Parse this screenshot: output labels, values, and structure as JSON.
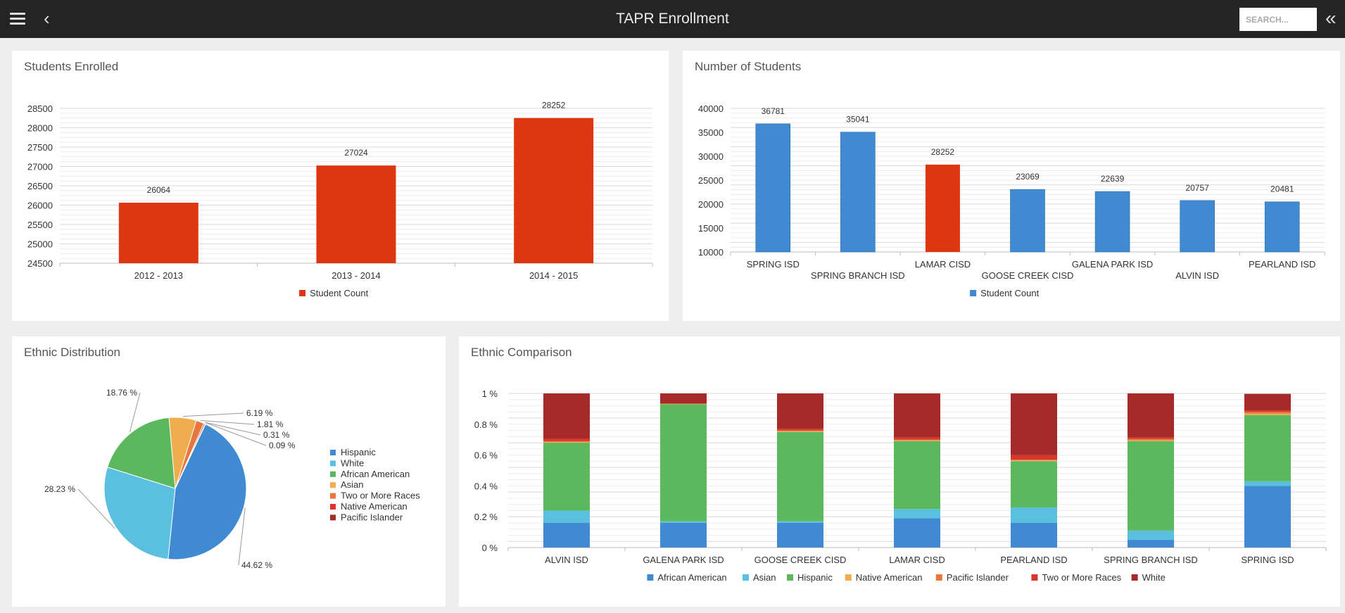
{
  "header": {
    "title": "TAPR Enrollment",
    "menu_icon": "hamburger-menu-icon",
    "back_icon": "chevron-left-icon",
    "search_placeholder": "SEARCH...",
    "collapse_icon": "double-chevron-left-icon"
  },
  "panels": {
    "students_enrolled": {
      "title": "Students Enrolled",
      "chart_data": {
        "type": "bar",
        "categories": [
          "2012 - 2013",
          "2013 - 2014",
          "2014 - 2015"
        ],
        "series": [
          {
            "name": "Student Count",
            "values": [
              26064,
              27024,
              28252
            ],
            "color": "#dd3712"
          }
        ],
        "ylim": [
          24500,
          28500
        ],
        "yticks": [
          24500,
          25000,
          25500,
          26000,
          26500,
          27000,
          27500,
          28000,
          28500
        ],
        "data_labels": true,
        "grid": true,
        "legend": "bottom-center"
      }
    },
    "number_of_students": {
      "title": "Number of Students",
      "chart_data": {
        "type": "bar",
        "categories": [
          "SPRING ISD",
          "SPRING BRANCH ISD",
          "LAMAR CISD",
          "GOOSE CREEK CISD",
          "GALENA PARK ISD",
          "ALVIN ISD",
          "PEARLAND ISD"
        ],
        "series": [
          {
            "name": "Student Count",
            "values": [
              36781,
              35041,
              28252,
              23069,
              22639,
              20757,
              20481
            ],
            "color": "#3f8ad1"
          }
        ],
        "highlight": {
          "category": "LAMAR CISD",
          "color": "#dd3712"
        },
        "ylim": [
          10000,
          40000
        ],
        "yticks": [
          10000,
          15000,
          20000,
          25000,
          30000,
          35000,
          40000
        ],
        "data_labels": true,
        "grid": true,
        "legend": "bottom-center"
      }
    },
    "ethnic_distribution": {
      "title": "Ethnic Distribution",
      "chart_data": {
        "type": "pie",
        "slices": [
          {
            "name": "Hispanic",
            "value": 44.62,
            "label": "44.62 %",
            "color": "#3f8ad1"
          },
          {
            "name": "White",
            "value": 28.23,
            "label": "28.23 %",
            "color": "#5bbfe0"
          },
          {
            "name": "African American",
            "value": 18.76,
            "label": "18.76 %",
            "color": "#5cb85c"
          },
          {
            "name": "Asian",
            "value": 6.19,
            "label": "6.19 %",
            "color": "#f0ad4e"
          },
          {
            "name": "Two or More Races",
            "value": 1.81,
            "label": "1.81 %",
            "color": "#e8773e"
          },
          {
            "name": "Native American",
            "value": 0.31,
            "label": "0.31 %",
            "color": "#d9372c"
          },
          {
            "name": "Pacific Islander",
            "value": 0.09,
            "label": "0.09 %",
            "color": "#a52a2a"
          }
        ],
        "legend": "right"
      }
    },
    "ethnic_comparison": {
      "title": "Ethnic Comparison",
      "chart_data": {
        "type": "bar",
        "stacked": true,
        "categories": [
          "ALVIN ISD",
          "GALENA PARK ISD",
          "GOOSE CREEK CISD",
          "LAMAR CISD",
          "PEARLAND ISD",
          "SPRING BRANCH ISD",
          "SPRING ISD"
        ],
        "series": [
          {
            "name": "African American",
            "color": "#3f8ad1",
            "values": [
              0.16,
              0.16,
              0.16,
              0.19,
              0.16,
              0.05,
              0.4
            ]
          },
          {
            "name": "Asian",
            "color": "#5bbfe0",
            "values": [
              0.08,
              0.01,
              0.01,
              0.06,
              0.1,
              0.06,
              0.03
            ]
          },
          {
            "name": "Hispanic",
            "color": "#5cb85c",
            "values": [
              0.44,
              0.76,
              0.58,
              0.44,
              0.3,
              0.58,
              0.43
            ]
          },
          {
            "name": "Native American",
            "color": "#f0ad4e",
            "values": [
              0.005,
              0.002,
              0.005,
              0.005,
              0.005,
              0.005,
              0.01
            ]
          },
          {
            "name": "Pacific Islander",
            "color": "#e8773e",
            "values": [
              0.005,
              0.002,
              0.005,
              0.005,
              0.005,
              0.01,
              0.01
            ]
          },
          {
            "name": "Two or More Races",
            "color": "#d9372c",
            "values": [
              0.015,
              0.002,
              0.01,
              0.015,
              0.03,
              0.01,
              0.01
            ]
          },
          {
            "name": "White",
            "color": "#a52a2a",
            "values": [
              0.295,
              0.066,
              0.23,
              0.285,
              0.4,
              0.285,
              0.107
            ]
          }
        ],
        "ylim": [
          0,
          1
        ],
        "yticks": [
          "0 %",
          "0.2 %",
          "0.4 %",
          "0.6 %",
          "0.8 %",
          "1 %"
        ],
        "grid": true,
        "legend": "bottom-center"
      }
    }
  }
}
